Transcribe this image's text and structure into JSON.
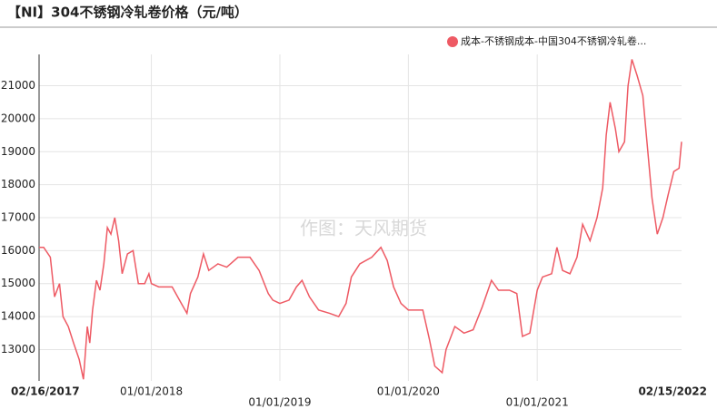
{
  "chart_data": {
    "type": "line",
    "title": "【NI】304不锈钢冷轧卷价格（元/吨）",
    "watermark": "作图：天风期货",
    "x": [
      "02/16/2017",
      "03/01/2017",
      "03/20/2017",
      "04/01/2017",
      "04/15/2017",
      "04/25/2017",
      "05/10/2017",
      "05/25/2017",
      "06/10/2017",
      "06/22/2017",
      "07/03/2017",
      "07/10/2017",
      "07/18/2017",
      "07/29/2017",
      "08/08/2017",
      "08/19/2017",
      "08/29/2017",
      "09/08/2017",
      "09/19/2017",
      "09/30/2017",
      "10/10/2017",
      "10/25/2017",
      "11/10/2017",
      "11/25/2017",
      "12/13/2017",
      "12/25/2017",
      "01/01/2018",
      "01/22/2018",
      "03/01/2018",
      "03/27/2018",
      "04/12/2018",
      "04/22/2018",
      "05/13/2018",
      "05/29/2018",
      "06/13/2018",
      "07/09/2018",
      "08/03/2018",
      "09/04/2018",
      "10/08/2018",
      "11/03/2018",
      "11/29/2018",
      "12/12/2018",
      "01/01/2019",
      "01/27/2019",
      "02/17/2019",
      "03/05/2019",
      "03/26/2019",
      "04/21/2019",
      "05/22/2019",
      "06/17/2019",
      "07/08/2019",
      "07/23/2019",
      "08/16/2019",
      "09/19/2019",
      "10/15/2019",
      "11/02/2019",
      "11/20/2019",
      "12/11/2019",
      "01/01/2020",
      "02/11/2020",
      "03/01/2020",
      "03/16/2020",
      "04/06/2020",
      "04/17/2020",
      "05/12/2020",
      "06/07/2020",
      "07/03/2020",
      "07/29/2020",
      "08/24/2020",
      "09/13/2020",
      "10/14/2020",
      "11/04/2020",
      "11/20/2020",
      "12/11/2020",
      "01/01/2021",
      "01/16/2021",
      "02/11/2021",
      "02/26/2021",
      "03/14/2021",
      "04/04/2021",
      "04/24/2021",
      "05/10/2021",
      "05/31/2021",
      "06/20/2021",
      "07/06/2021",
      "07/16/2021",
      "07/27/2021",
      "08/11/2021",
      "08/21/2021",
      "09/06/2021",
      "09/16/2021",
      "09/27/2021",
      "10/12/2021",
      "10/28/2021",
      "11/07/2021",
      "11/23/2021",
      "12/08/2021",
      "12/24/2021",
      "01/08/2022",
      "01/24/2022",
      "02/08/2022",
      "02/15/2022"
    ],
    "series": [
      {
        "name": "成本-不锈钢成本-中国304不锈钢冷轧卷...",
        "color": "#ee5a64",
        "values": [
          16100,
          16100,
          15800,
          14600,
          15000,
          14000,
          13700,
          13200,
          12700,
          12100,
          13700,
          13200,
          14200,
          15100,
          14800,
          15600,
          16700,
          16500,
          17000,
          16300,
          15300,
          15900,
          16000,
          15000,
          15000,
          15300,
          15000,
          14900,
          14900,
          14400,
          14100,
          14700,
          15200,
          15900,
          15400,
          15600,
          15500,
          15800,
          15800,
          15400,
          14700,
          14500,
          14400,
          14500,
          14900,
          15100,
          14600,
          14200,
          14100,
          14000,
          14400,
          15200,
          15600,
          15800,
          16100,
          15700,
          14900,
          14400,
          14200,
          14200,
          13300,
          12500,
          12300,
          13000,
          13700,
          13500,
          13600,
          14300,
          15100,
          14800,
          14800,
          14700,
          13400,
          13500,
          14800,
          15200,
          15300,
          16100,
          15400,
          15300,
          15800,
          16800,
          16300,
          17000,
          17900,
          19500,
          20500,
          19700,
          19000,
          19300,
          21000,
          21800,
          21300,
          20700,
          19500,
          17600,
          16500,
          17000,
          17700,
          18400,
          18500,
          19300
        ]
      }
    ],
    "xlim": [
      "02/16/2017",
      "02/15/2022"
    ],
    "xticks": [
      "02/16/2017",
      "01/01/2018",
      "01/01/2019",
      "01/01/2020",
      "01/01/2021",
      "02/15/2022"
    ],
    "ylim": [
      12050,
      21950
    ],
    "yticks": [
      13000,
      14000,
      15000,
      16000,
      17000,
      18000,
      19000,
      20000,
      21000
    ],
    "grid": true
  }
}
